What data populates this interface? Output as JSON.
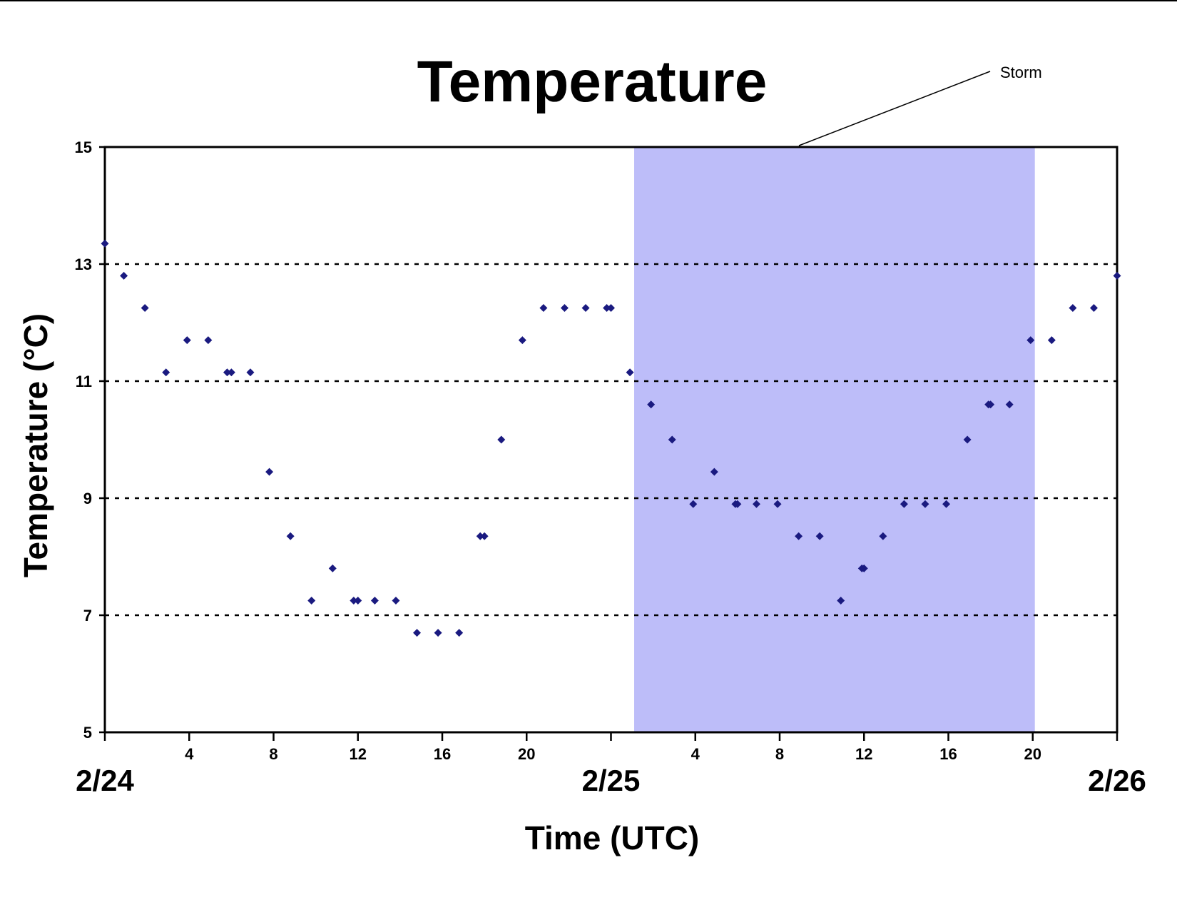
{
  "chart_data": {
    "type": "scatter",
    "title": "Temperature",
    "xlabel": "Time (UTC)",
    "ylabel": "Temperature (°C)",
    "ylim": [
      5,
      15
    ],
    "yticks": [
      5,
      7,
      9,
      11,
      13,
      15
    ],
    "grid_y": [
      7,
      9,
      11,
      13
    ],
    "xlim_hours": [
      0,
      48
    ],
    "xtick_hours": [
      0,
      4,
      8,
      12,
      16,
      20,
      24,
      28,
      32,
      36,
      40,
      44,
      48
    ],
    "xtick_labels": [
      "",
      "4",
      "8",
      "12",
      "16",
      "20",
      "",
      "4",
      "8",
      "12",
      "16",
      "20",
      ""
    ],
    "date_labels": [
      {
        "hour": 0,
        "label": "2/24"
      },
      {
        "hour": 24,
        "label": "2/25"
      },
      {
        "hour": 48,
        "label": "2/26"
      }
    ],
    "shaded_region": {
      "label": "Storm",
      "start_hour": 25.1,
      "end_hour": 44.1,
      "color": "#bdbdf9"
    },
    "marker_color": "#1a1a80",
    "series": [
      {
        "x": [
          0,
          0.9,
          1.9,
          2.9,
          3.9,
          4.9,
          5.8,
          6.0,
          6.9,
          7.8,
          8.8,
          9.8,
          10.8,
          11.8,
          12.0,
          12.8,
          13.8,
          14.8,
          15.8,
          16.8,
          17.8,
          18.0,
          18.8,
          19.8,
          20.8,
          21.8,
          22.8,
          23.8,
          24.0,
          24.9,
          25.9,
          26.9,
          27.9,
          28.9,
          29.9,
          30.0,
          30.9,
          31.9,
          32.9,
          33.9,
          34.9,
          35.9,
          36.0,
          36.9,
          37.9,
          38.9,
          39.9,
          40.9,
          41.9,
          42.0,
          42.9,
          43.9,
          44.9,
          45.9,
          46.9,
          48.0
        ],
        "y": [
          13.35,
          12.8,
          12.25,
          11.15,
          11.7,
          11.7,
          11.15,
          11.15,
          11.15,
          9.45,
          8.35,
          7.25,
          7.8,
          7.25,
          7.25,
          7.25,
          7.25,
          6.7,
          6.7,
          6.7,
          8.35,
          8.35,
          10.0,
          11.7,
          12.25,
          12.25,
          12.25,
          12.25,
          12.25,
          11.15,
          10.6,
          10.0,
          8.9,
          9.45,
          8.9,
          8.9,
          8.9,
          8.9,
          8.35,
          8.35,
          7.25,
          7.8,
          7.8,
          8.35,
          8.9,
          8.9,
          8.9,
          10.0,
          10.6,
          10.6,
          10.6,
          11.7,
          11.7,
          12.25,
          12.25,
          12.8
        ]
      }
    ]
  }
}
